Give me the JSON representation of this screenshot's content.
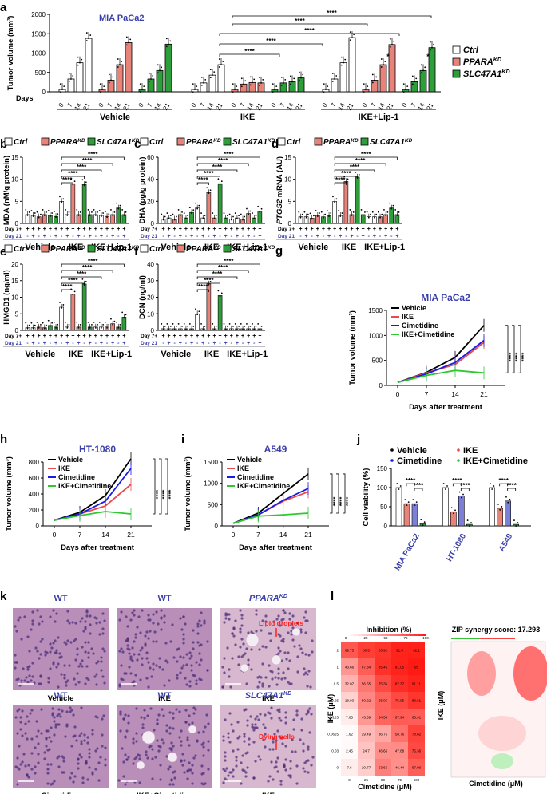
{
  "panel_labels": [
    "a",
    "b",
    "c",
    "d",
    "e",
    "f",
    "g",
    "h",
    "i",
    "j",
    "k",
    "l"
  ],
  "colors": {
    "ctrl": "#ffffff",
    "ppara": "#e8837a",
    "slc": "#2e9e3a",
    "blue": "#3b3fa8",
    "pink": "#e0368a",
    "vehicleLine": "#000000",
    "ikeLine": "#e94b4b",
    "cimLine": "#1a1ae6",
    "comboLine": "#2fc82f"
  },
  "chart_data": [
    {
      "id": "a",
      "type": "bar",
      "title": "MIA PaCa2",
      "ylabel": "Tumor volume (mm³)",
      "ylim": [
        0,
        2000
      ],
      "yticks": [
        0,
        500,
        1000,
        1500,
        2000
      ],
      "day_prefix": "Days",
      "days": [
        "0",
        "7",
        "14",
        "21"
      ],
      "groups": [
        "Vehicle",
        "IKE",
        "IKE+Lip-1"
      ],
      "series": [
        {
          "name": "Ctrl",
          "values": [
            [
              60,
              330,
              750,
              1380
            ],
            [
              60,
              230,
              430,
              700
            ],
            [
              60,
              330,
              750,
              1400
            ]
          ]
        },
        {
          "name": "PPARA",
          "sup": "KD",
          "values": [
            [
              60,
              300,
              700,
              1270
            ],
            [
              60,
              200,
              240,
              230
            ],
            [
              60,
              300,
              700,
              1220
            ]
          ]
        },
        {
          "name": "SLC47A1",
          "sup": "KD",
          "values": [
            [
              60,
              330,
              550,
              1230
            ],
            [
              60,
              230,
              260,
              360
            ],
            [
              60,
              260,
              550,
              1140
            ]
          ]
        }
      ],
      "significance": [
        "****",
        "****",
        "****",
        "****",
        "****",
        "*",
        "*"
      ]
    },
    {
      "id": "b",
      "type": "bar",
      "ylabel": "MDA (nM/g protein)",
      "ylim": [
        0,
        15
      ],
      "yticks": [
        0,
        5,
        10,
        15
      ],
      "values": [
        [
          2,
          1.8,
          1.5,
          2,
          1.8,
          1.6
        ],
        [
          5,
          2,
          9,
          2,
          8.8,
          2
        ],
        [
          2,
          1.8,
          1.6,
          2,
          3.5,
          2
        ]
      ]
    },
    {
      "id": "c",
      "type": "bar",
      "ylabel": "DHA (pg/g protein)",
      "ylim": [
        0,
        60
      ],
      "yticks": [
        0,
        20,
        40,
        60
      ],
      "values": [
        [
          4,
          5,
          4,
          8,
          5,
          10
        ],
        [
          14,
          5,
          28,
          5,
          36,
          5
        ],
        [
          4,
          5,
          4,
          9,
          5,
          11
        ]
      ]
    },
    {
      "id": "d",
      "type": "bar",
      "ylabel": "PTGS2 mRNA (AU)",
      "ylim": [
        0,
        15
      ],
      "yticks": [
        0,
        5,
        10,
        15
      ],
      "values": [
        [
          1.5,
          1.5,
          1.2,
          1.8,
          1.5,
          1.8
        ],
        [
          5,
          1.8,
          9.5,
          2,
          10.5,
          2
        ],
        [
          1.5,
          1.5,
          1.5,
          2,
          3.5,
          2
        ]
      ]
    },
    {
      "id": "e",
      "type": "bar",
      "ylabel": "HMGB1 (ng/ml)",
      "ylim": [
        0,
        20
      ],
      "yticks": [
        0,
        5,
        10,
        15,
        20
      ],
      "values": [
        [
          0.8,
          0.8,
          1,
          0.8,
          1.5,
          1
        ],
        [
          7,
          1,
          11,
          1,
          14,
          1
        ],
        [
          1,
          1,
          1,
          2,
          1,
          4
        ]
      ]
    },
    {
      "id": "f",
      "type": "bar",
      "ylabel": "DCN (ng/ml)",
      "ylim": [
        0,
        40
      ],
      "yticks": [
        0,
        10,
        20,
        30,
        40
      ],
      "values": [
        [
          1,
          1,
          1,
          1,
          1,
          1
        ],
        [
          10,
          1,
          28,
          1,
          21,
          1
        ],
        [
          1,
          1,
          1,
          1,
          1,
          1
        ]
      ]
    },
    {
      "id": "g",
      "type": "line",
      "title": "MIA PaCa2",
      "ylabel": "Tumor volume (mm³)",
      "xlabel": "Days after treatment",
      "ylim": [
        0,
        1500
      ],
      "yticks": [
        0,
        500,
        1000,
        1500
      ],
      "x": [
        0,
        7,
        14,
        21
      ],
      "series": [
        {
          "name": "Vehicle",
          "values": [
            60,
            260,
            560,
            1200
          ]
        },
        {
          "name": "IKE",
          "values": [
            60,
            250,
            420,
            860
          ]
        },
        {
          "name": "Cimetidine",
          "values": [
            60,
            230,
            460,
            900
          ]
        },
        {
          "name": "IKE+Cimetidine",
          "values": [
            60,
            200,
            300,
            250
          ]
        }
      ]
    },
    {
      "id": "h",
      "type": "line",
      "title": "HT-1080",
      "ylabel": "Tumor volume (mm³)",
      "xlabel": "Days after treatment",
      "ylim": [
        0,
        800
      ],
      "yticks": [
        0,
        200,
        400,
        600,
        800
      ],
      "x": [
        0,
        7,
        14,
        21
      ],
      "series": [
        {
          "name": "Vehicle",
          "values": [
            70,
            170,
            380,
            840
          ]
        },
        {
          "name": "IKE",
          "values": [
            70,
            150,
            250,
            520
          ]
        },
        {
          "name": "Cimetidine",
          "values": [
            70,
            150,
            310,
            720
          ]
        },
        {
          "name": "IKE+Cimetidine",
          "values": [
            70,
            130,
            180,
            150
          ]
        }
      ]
    },
    {
      "id": "i",
      "type": "line",
      "title": "A549",
      "ylabel": "Tumor volume (mm³)",
      "xlabel": "Days after treatment",
      "ylim": [
        0,
        1500
      ],
      "yticks": [
        0,
        500,
        1000,
        1500
      ],
      "x": [
        0,
        7,
        14,
        21
      ],
      "series": [
        {
          "name": "Vehicle",
          "values": [
            60,
            300,
            760,
            1220
          ]
        },
        {
          "name": "IKE",
          "values": [
            60,
            260,
            580,
            800
          ]
        },
        {
          "name": "Cimetidine",
          "values": [
            60,
            260,
            600,
            880
          ]
        },
        {
          "name": "IKE+Cimetidine",
          "values": [
            60,
            230,
            260,
            300
          ]
        }
      ]
    },
    {
      "id": "k",
      "type": "bar",
      "ylabel": "Cell viability (%)",
      "ylim": [
        0,
        150
      ],
      "yticks": [
        0,
        50,
        100,
        150
      ],
      "categories": [
        "MIA PaCa2",
        "HT-1080",
        "A549"
      ],
      "series": [
        {
          "name": "Vehicle",
          "values": [
            100,
            100,
            100
          ]
        },
        {
          "name": "IKE",
          "values": [
            58,
            37,
            46
          ]
        },
        {
          "name": "Cimetidine",
          "values": [
            58,
            78,
            65
          ]
        },
        {
          "name": "IKE+Cimetidine",
          "values": [
            6,
            4,
            4
          ]
        }
      ]
    },
    {
      "id": "l",
      "type": "heatmap",
      "title": "Inhibition (%)",
      "xlabel": "Cimetidine (μM)",
      "ylabel": "IKE (μM)",
      "values": [
        [
          69.75,
          80.5,
          83.92,
          91.3,
          92.1
        ],
        [
          43.66,
          67.34,
          85.45,
          91.05,
          95.0
        ],
        [
          32.07,
          56.55,
          75.36,
          87.37,
          91.11
        ],
        [
          18.93,
          50.22,
          65.05,
          75.95,
          83.81
        ],
        [
          7.65,
          43.39,
          64.55,
          67.94,
          66.91
        ],
        [
          1.62,
          29.49,
          36.75,
          58.76,
          78.82
        ],
        [
          2.45,
          24.7,
          46.66,
          47.88,
          75.36
        ],
        [
          7.6,
          20.77,
          53.66,
          46.44,
          67.09
        ]
      ],
      "col_ticks": [
        "0",
        "25",
        "50",
        "75",
        "100"
      ],
      "row_ticks": [
        "2",
        "1",
        "0.5",
        "0.25",
        "0.125",
        "0.0625",
        "0.03",
        "0"
      ]
    }
  ],
  "panel_a": {
    "legend": [
      "Ctrl",
      "PPARA",
      "SLC47A1"
    ],
    "sup": "KD",
    "xgroups": [
      "Vehicle",
      "IKE",
      "IKE+Lip-1"
    ],
    "days_label": "Days"
  },
  "bar_panels": {
    "legend": [
      "Ctrl",
      "PPARA",
      "SLC47A1"
    ],
    "sup": "KD",
    "day7": "Day 7+",
    "day21": "Day 21",
    "groups": [
      "Vehicle",
      "IKE",
      "IKE+Lip-1"
    ],
    "plus": "+",
    "minus": "-",
    "stars": "****"
  },
  "line_panels": {
    "legend": [
      "Vehicle",
      "IKE",
      "Cimetidine",
      "IKE+Cimetidine"
    ],
    "stars": "****"
  },
  "panel_k": {
    "legend": [
      "Vehicle",
      "IKE",
      "Cimetidine",
      "IKE+Cimetidine"
    ],
    "stars": "****"
  },
  "panel_j": {
    "tiles": [
      {
        "top": "WT",
        "bottom": "Vehicle",
        "annotation": ""
      },
      {
        "top": "WT",
        "bottom": "IKE",
        "annotation": ""
      },
      {
        "top": "PPARA",
        "sup": "KD",
        "bottom": "IKE",
        "annotation": "Lipid droplets"
      },
      {
        "top": "WT",
        "bottom": "Cimetidine",
        "annotation": ""
      },
      {
        "top": "WT",
        "bottom": "IKE+Cimetidine",
        "annotation": ""
      },
      {
        "top": "SLC47A1",
        "sup": "KD",
        "bottom": "IKE",
        "annotation": "Dying cells"
      }
    ]
  },
  "panel_l": {
    "synergy_title": "ZIP synergy score: 17.293",
    "xlabel": "Cimetidine (μM)",
    "ylabel": "IKE (μM)"
  }
}
